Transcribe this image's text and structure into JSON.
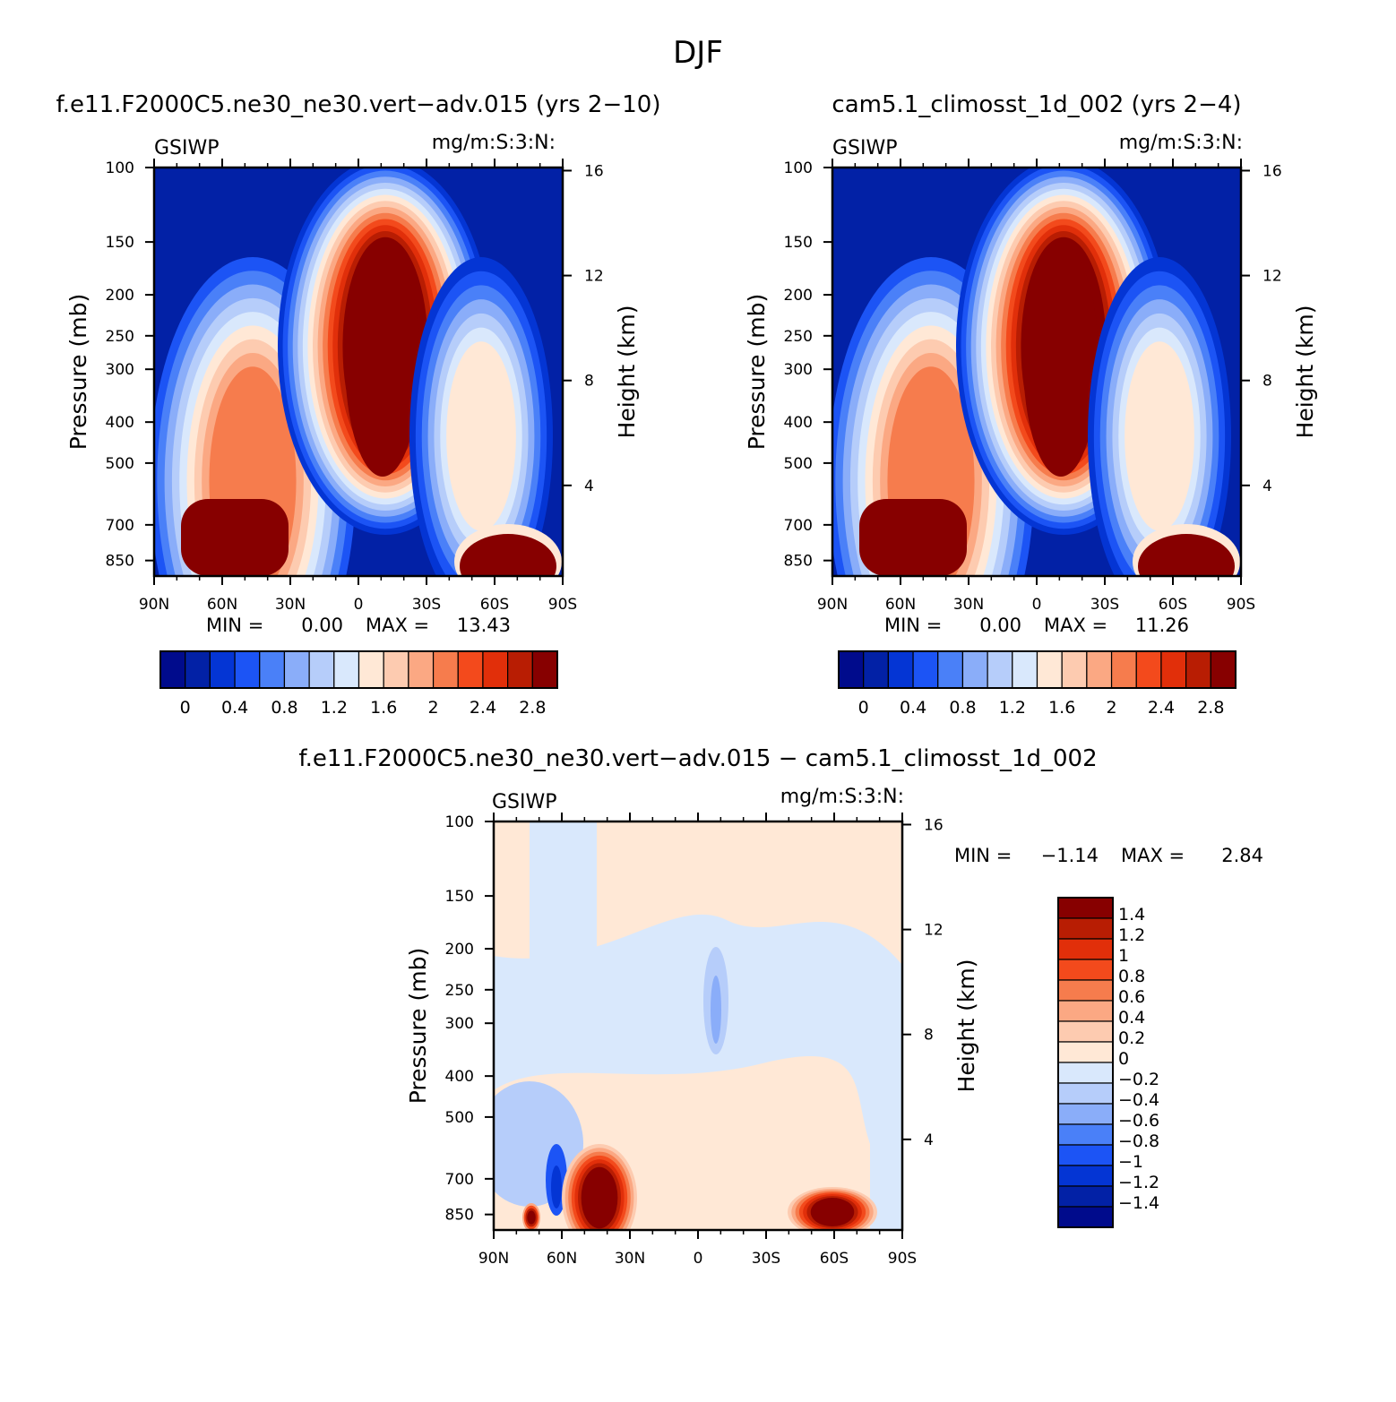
{
  "page_title": "DJF",
  "colors": {
    "seq_palette": [
      "#000b8c",
      "#0221a6",
      "#0435d4",
      "#1c54f5",
      "#4a80f8",
      "#8aadf9",
      "#b6cdfa",
      "#d9e8fc",
      "#ffe8d6",
      "#fdcbb0",
      "#fba883",
      "#f67c4d",
      "#f34a1c",
      "#e12f0a",
      "#b81d03",
      "#870000"
    ],
    "diff_palette": [
      "#000b8c",
      "#0221a6",
      "#0435d4",
      "#1c54f5",
      "#4a80f8",
      "#8aadf9",
      "#b6cdfa",
      "#d9e8fc",
      "#ffe8d6",
      "#fdcbb0",
      "#fba883",
      "#f67c4d",
      "#f34a1c",
      "#e12f0a",
      "#b81d03",
      "#870000"
    ]
  },
  "chart_data": [
    {
      "type": "heatmap",
      "title": "f.e11.F2000C5.ne30_ne30.vert−adv.015 (yrs 2−10)",
      "left_label": "GSIWP",
      "right_label": "mg/m:S:3:N:",
      "xlabel": "",
      "ylabel": "Pressure (mb)",
      "y2label": "Height (km)",
      "xticks": [
        "90N",
        "60N",
        "30N",
        "0",
        "30S",
        "60S",
        "90S"
      ],
      "yticks": [
        100,
        150,
        200,
        250,
        300,
        400,
        500,
        700,
        850
      ],
      "y2ticks": [
        16,
        12,
        8,
        4
      ],
      "yscale": "log",
      "ylim": [
        100,
        925
      ],
      "xlim": [
        90,
        -90
      ],
      "min_label": "MIN =",
      "min_value": "0.00",
      "max_label": "MAX =",
      "max_value": "13.43",
      "colorbar_labels": [
        "0",
        "0.4",
        "0.8",
        "1.2",
        "1.6",
        "2",
        "2.4",
        "2.8"
      ],
      "colorbar_levels": [
        0,
        0.2,
        0.4,
        0.6,
        0.8,
        1.0,
        1.2,
        1.4,
        1.6,
        1.8,
        2.0,
        2.2,
        2.4,
        2.6,
        2.8
      ],
      "features": [
        {
          "lat": 55,
          "p": 780,
          "value": 3.2
        },
        {
          "lat": 45,
          "p": 760,
          "value": 3.0
        },
        {
          "lat": 45,
          "p": 420,
          "value": 1.9
        },
        {
          "lat": -8,
          "p": 330,
          "value": 3.5
        },
        {
          "lat": -60,
          "p": 840,
          "value": 3.2
        },
        {
          "lat": -50,
          "p": 420,
          "value": 1.6
        }
      ]
    },
    {
      "type": "heatmap",
      "title": "cam5.1_climosst_1d_002 (yrs 2−4)",
      "left_label": "GSIWP",
      "right_label": "mg/m:S:3:N:",
      "xlabel": "",
      "ylabel": "Pressure (mb)",
      "y2label": "Height (km)",
      "xticks": [
        "90N",
        "60N",
        "30N",
        "0",
        "30S",
        "60S",
        "90S"
      ],
      "yticks": [
        100,
        150,
        200,
        250,
        300,
        400,
        500,
        700,
        850
      ],
      "y2ticks": [
        16,
        12,
        8,
        4
      ],
      "yscale": "log",
      "ylim": [
        100,
        925
      ],
      "xlim": [
        90,
        -90
      ],
      "min_label": "MIN =",
      "min_value": "0.00",
      "max_label": "MAX =",
      "max_value": "11.26",
      "colorbar_labels": [
        "0",
        "0.4",
        "0.8",
        "1.2",
        "1.6",
        "2",
        "2.4",
        "2.8"
      ],
      "colorbar_levels": [
        0,
        0.2,
        0.4,
        0.6,
        0.8,
        1.0,
        1.2,
        1.4,
        1.6,
        1.8,
        2.0,
        2.2,
        2.4,
        2.6,
        2.8
      ],
      "features": [
        {
          "lat": 55,
          "p": 780,
          "value": 3.2
        },
        {
          "lat": 45,
          "p": 760,
          "value": 3.0
        },
        {
          "lat": 45,
          "p": 420,
          "value": 1.9
        },
        {
          "lat": -8,
          "p": 330,
          "value": 3.5
        },
        {
          "lat": -60,
          "p": 840,
          "value": 3.2
        },
        {
          "lat": -50,
          "p": 420,
          "value": 1.6
        }
      ]
    },
    {
      "type": "heatmap",
      "title": "f.e11.F2000C5.ne30_ne30.vert−adv.015 − cam5.1_climosst_1d_002",
      "left_label": "GSIWP",
      "right_label": "mg/m:S:3:N:",
      "xlabel": "",
      "ylabel": "Pressure (mb)",
      "y2label": "Height (km)",
      "xticks": [
        "90N",
        "60N",
        "30N",
        "0",
        "30S",
        "60S",
        "90S"
      ],
      "yticks": [
        100,
        150,
        200,
        250,
        300,
        400,
        500,
        700,
        850
      ],
      "y2ticks": [
        16,
        12,
        8,
        4
      ],
      "yscale": "log",
      "ylim": [
        100,
        925
      ],
      "xlim": [
        90,
        -90
      ],
      "min_label": "MIN =",
      "min_value": "−1.14",
      "max_label": "MAX =",
      "max_value": "2.84",
      "colorbar_labels": [
        "1.4",
        "1.2",
        "1",
        "0.8",
        "0.6",
        "0.4",
        "0.2",
        "0",
        "−0.2",
        "−0.4",
        "−0.6",
        "−0.8",
        "−1",
        "−1.2",
        "−1.4"
      ],
      "colorbar_levels": [
        -1.4,
        -1.2,
        -1,
        -0.8,
        -0.6,
        -0.4,
        -0.2,
        0,
        0.2,
        0.4,
        0.6,
        0.8,
        1,
        1.2,
        1.4
      ],
      "features": [
        {
          "lat": 47,
          "p": 800,
          "value": 3.0
        },
        {
          "lat": -59,
          "p": 840,
          "value": 2.8
        },
        {
          "lat": 74,
          "p": 860,
          "value": 2.0
        },
        {
          "lat": 62,
          "p": 700,
          "value": -1.1
        }
      ]
    }
  ]
}
